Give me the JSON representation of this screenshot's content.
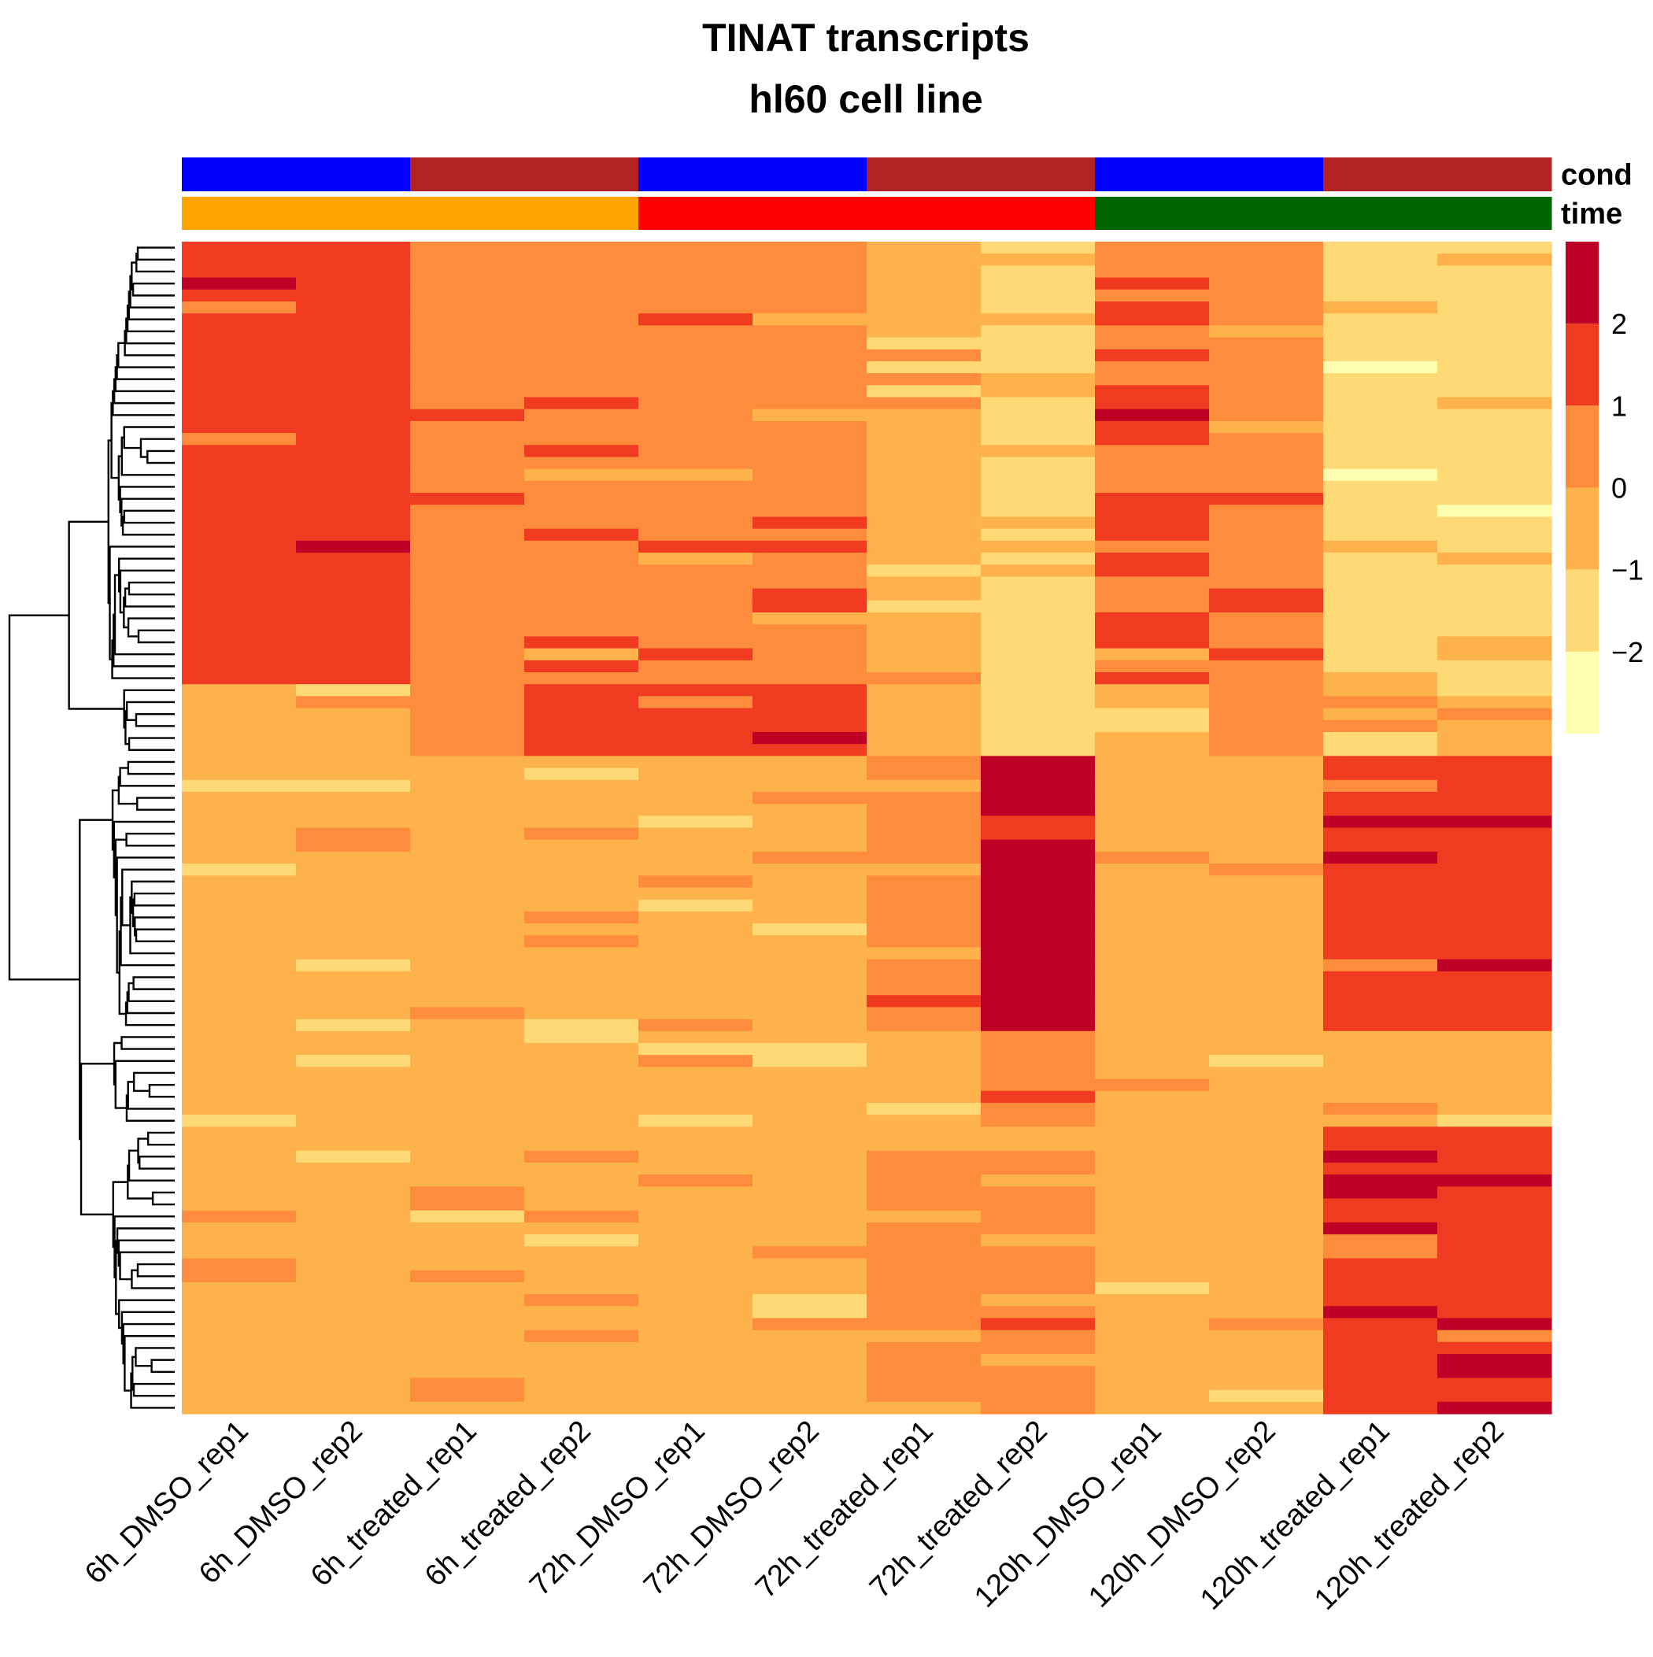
{
  "chart_data": {
    "type": "heatmap",
    "title": "TINAT transcripts",
    "subtitle": "hl60 cell line",
    "columns": [
      "6h_DMSO_rep1",
      "6h_DMSO_rep2",
      "6h_treated_rep1",
      "6h_treated_rep2",
      "72h_DMSO_rep1",
      "72h_DMSO_rep2",
      "72h_treated_rep1",
      "72h_treated_rep2",
      "120h_DMSO_rep1",
      "120h_DMSO_rep2",
      "120h_treated_rep1",
      "120h_treated_rep2"
    ],
    "annotations": [
      {
        "name": "cond",
        "colors": [
          "#0000FF",
          "#0000FF",
          "#B22222",
          "#B22222",
          "#0000FF",
          "#0000FF",
          "#B22222",
          "#B22222",
          "#0000FF",
          "#0000FF",
          "#B22222",
          "#B22222"
        ]
      },
      {
        "name": "time",
        "colors": [
          "#FFA500",
          "#FFA500",
          "#FFA500",
          "#FFA500",
          "#FF0000",
          "#FF0000",
          "#FF0000",
          "#FF0000",
          "#006400",
          "#006400",
          "#006400",
          "#006400"
        ]
      }
    ],
    "legend": {
      "ticks": [
        "2",
        "1",
        "0",
        "−1",
        "−2"
      ],
      "tick_values": [
        2,
        1,
        0,
        -1,
        -2
      ],
      "range": [
        -3,
        3
      ],
      "bins": [
        {
          "from": 2,
          "to": 3,
          "color": "#BD0026"
        },
        {
          "from": 1,
          "to": 2,
          "color": "#F03B20"
        },
        {
          "from": 0,
          "to": 1,
          "color": "#FD8D3C"
        },
        {
          "from": -1,
          "to": 0,
          "color": "#FEB24C"
        },
        {
          "from": -2,
          "to": -1,
          "color": "#FED976"
        },
        {
          "from": -3,
          "to": -2,
          "color": "#FFFFB2"
        }
      ]
    },
    "row_groups": [
      {
        "rows": 37,
        "values": [
          1.5,
          1.6,
          0.6,
          0.7,
          0.5,
          0.6,
          -0.6,
          -1.2,
          1.0,
          0.5,
          -1.5,
          -1.5
        ]
      },
      {
        "rows": 6,
        "values": [
          -0.5,
          -0.5,
          0.5,
          1.5,
          1.0,
          1.3,
          -0.8,
          -1.3,
          -0.2,
          0.5,
          -0.8,
          -0.6
        ]
      },
      {
        "rows": 23,
        "values": [
          -0.5,
          -0.5,
          -0.6,
          -0.5,
          -0.6,
          -0.6,
          0.6,
          2.5,
          -0.5,
          -0.6,
          1.3,
          1.4
        ]
      },
      {
        "rows": 8,
        "values": [
          -0.8,
          -0.7,
          -0.5,
          -0.6,
          -0.5,
          -0.5,
          -0.5,
          0.5,
          -0.3,
          -0.4,
          -0.5,
          -0.4
        ]
      },
      {
        "rows": 24,
        "values": [
          -0.6,
          -0.6,
          -0.6,
          -0.6,
          -0.6,
          -0.6,
          0.3,
          0.2,
          -0.6,
          -0.6,
          1.8,
          1.8
        ]
      }
    ]
  }
}
